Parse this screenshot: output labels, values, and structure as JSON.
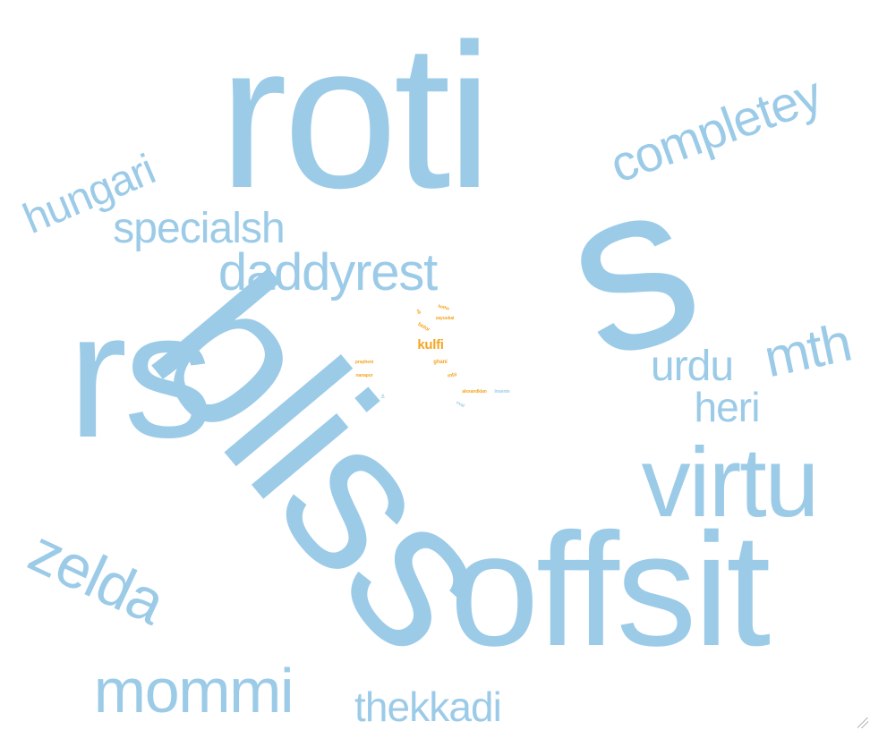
{
  "word_cloud": {
    "colors": {
      "primary": "#9ccbe8",
      "highlight": "#f5a623"
    },
    "words": [
      {
        "text": "roti",
        "color": "primary"
      },
      {
        "text": "s",
        "color": "primary"
      },
      {
        "text": "rs",
        "color": "primary"
      },
      {
        "text": "bliss",
        "color": "primary"
      },
      {
        "text": "offsit",
        "color": "primary"
      },
      {
        "text": "virtu",
        "color": "primary"
      },
      {
        "text": "completey",
        "color": "primary"
      },
      {
        "text": "hungari",
        "color": "primary"
      },
      {
        "text": "specialsh",
        "color": "primary"
      },
      {
        "text": "daddyrest",
        "color": "primary"
      },
      {
        "text": "mth",
        "color": "primary"
      },
      {
        "text": "urdu",
        "color": "primary"
      },
      {
        "text": "heri",
        "color": "primary"
      },
      {
        "text": "zelda",
        "color": "primary"
      },
      {
        "text": "mommi",
        "color": "primary"
      },
      {
        "text": "thekkadi",
        "color": "primary"
      },
      {
        "text": "kulfi",
        "color": "highlight"
      },
      {
        "text": "bolor",
        "color": "highlight"
      },
      {
        "text": "sayuukai",
        "color": "highlight"
      },
      {
        "text": "kothe",
        "color": "highlight"
      },
      {
        "text": "oll",
        "color": "highlight"
      },
      {
        "text": "jangg",
        "color": "primary"
      },
      {
        "text": "prepheni",
        "color": "highlight"
      },
      {
        "text": "ghani",
        "color": "highlight"
      },
      {
        "text": "mbi",
        "color": "highlight"
      },
      {
        "text": "nanapur",
        "color": "highlight"
      },
      {
        "text": "alexandklan",
        "color": "highlight"
      },
      {
        "text": "inuente",
        "color": "primary"
      },
      {
        "text": "ty",
        "color": "primary"
      },
      {
        "text": "oval",
        "color": "primary"
      }
    ]
  }
}
